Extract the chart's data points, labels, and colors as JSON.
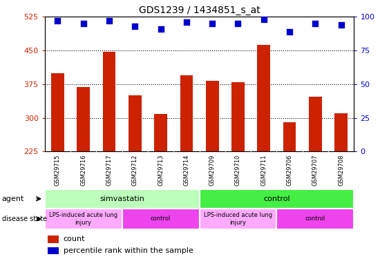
{
  "title": "GDS1239 / 1434851_s_at",
  "samples": [
    "GSM29715",
    "GSM29716",
    "GSM29717",
    "GSM29712",
    "GSM29713",
    "GSM29714",
    "GSM29709",
    "GSM29710",
    "GSM29711",
    "GSM29706",
    "GSM29707",
    "GSM29708"
  ],
  "counts": [
    400,
    368,
    447,
    350,
    308,
    395,
    383,
    380,
    462,
    290,
    347,
    310
  ],
  "percentile": [
    97,
    95,
    97,
    93,
    91,
    96,
    95,
    95,
    98,
    89,
    95,
    94
  ],
  "ylim_left": [
    225,
    525
  ],
  "ylim_right": [
    0,
    100
  ],
  "yticks_left": [
    225,
    300,
    375,
    450,
    525
  ],
  "yticks_right": [
    0,
    25,
    50,
    75,
    100
  ],
  "bar_color": "#cc2200",
  "dot_color": "#0000cc",
  "agent_groups": [
    {
      "label": "simvastatin",
      "start": 0,
      "end": 6,
      "color": "#bbffbb"
    },
    {
      "label": "control",
      "start": 6,
      "end": 12,
      "color": "#44ee44"
    }
  ],
  "disease_groups": [
    {
      "label": "LPS-induced acute lung\ninjury",
      "start": 0,
      "end": 3,
      "color": "#ffaaff"
    },
    {
      "label": "control",
      "start": 3,
      "end": 6,
      "color": "#ee44ee"
    },
    {
      "label": "LPS-induced acute lung\ninjury",
      "start": 6,
      "end": 9,
      "color": "#ffaaff"
    },
    {
      "label": "control",
      "start": 9,
      "end": 12,
      "color": "#ee44ee"
    }
  ],
  "sample_area_color": "#cccccc",
  "legend_count_color": "#cc2200",
  "legend_dot_color": "#0000cc"
}
